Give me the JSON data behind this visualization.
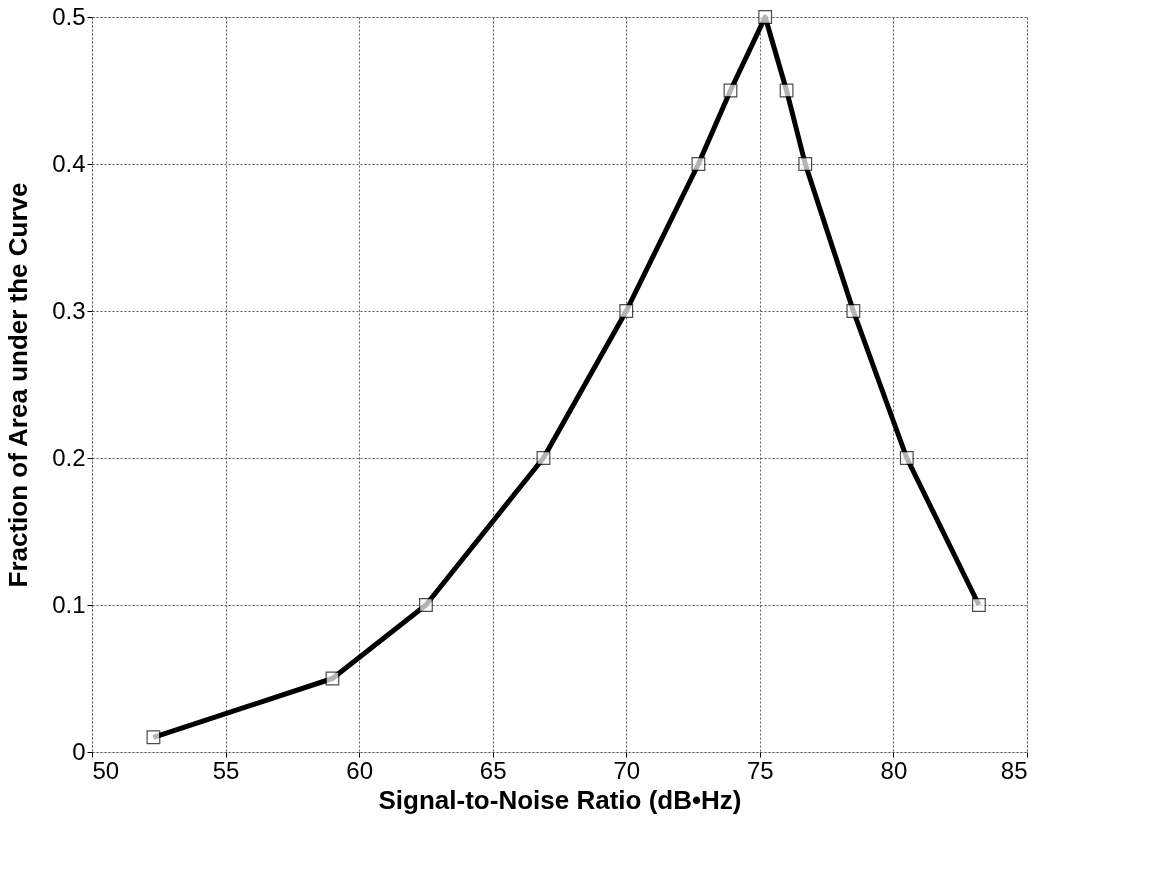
{
  "chart_data": {
    "type": "line",
    "xlabel": "Signal-to-Noise Ratio (dB•Hz)",
    "ylabel": "Fraction of Area under the Curve",
    "x": [
      52.3,
      59.0,
      62.5,
      66.9,
      70.0,
      72.7,
      73.9,
      75.2,
      76.0,
      76.7,
      78.5,
      80.5,
      83.2
    ],
    "series": [
      {
        "color": "#000000",
        "values": [
          0.01,
          0.05,
          0.1,
          0.2,
          0.3,
          0.4,
          0.45,
          0.5,
          0.45,
          0.4,
          0.3,
          0.2,
          0.1
        ]
      }
    ],
    "xlim": [
      50,
      85
    ],
    "xticks": [
      50,
      55,
      60,
      65,
      70,
      75,
      80,
      85
    ],
    "ylim": [
      0,
      0.5
    ],
    "yticks": [
      0,
      0.1,
      0.2,
      0.3,
      0.4,
      0.5
    ],
    "grid": true,
    "marker": "square",
    "line_style": "solid",
    "legend": false
  }
}
